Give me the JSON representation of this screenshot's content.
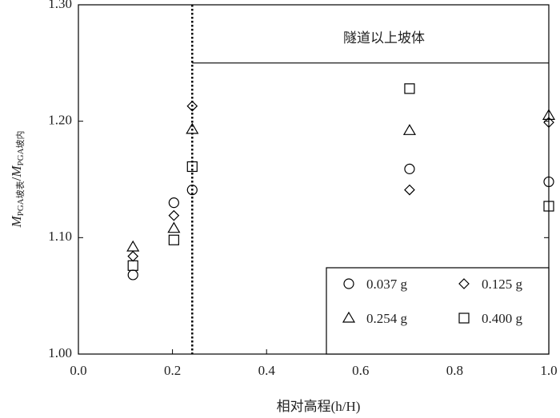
{
  "chart_data": {
    "type": "scatter",
    "xlabel": "相对高程(h/H)",
    "ylabel": {
      "main1": "M",
      "sub1": "PGA坡表",
      "sep": "/",
      "main2": "M",
      "sub2": "PGA坡内"
    },
    "annotation": "隧道以上坡体",
    "vline": 0.242,
    "hline": 1.25,
    "x": [
      0.116,
      0.203,
      0.242,
      0.704,
      1.0
    ],
    "series": [
      {
        "name": "0.037 g",
        "marker": "circle",
        "color": "#000000",
        "values": [
          1.068,
          1.13,
          1.141,
          1.159,
          1.148
        ]
      },
      {
        "name": "0.125 g",
        "marker": "diamond",
        "color": "#000000",
        "values": [
          1.084,
          1.119,
          1.213,
          1.141,
          1.199
        ]
      },
      {
        "name": "0.254 g",
        "marker": "triangle",
        "color": "#000000",
        "values": [
          1.092,
          1.108,
          1.193,
          1.192,
          1.205
        ]
      },
      {
        "name": "0.400 g",
        "marker": "square",
        "color": "#000000",
        "values": [
          1.076,
          1.098,
          1.161,
          1.228,
          1.127
        ]
      }
    ],
    "xlim": [
      0,
      1.0
    ],
    "xticks": [
      {
        "value": 0,
        "label": "0.0"
      },
      {
        "value": 0.2,
        "label": "0.2"
      },
      {
        "value": 0.4,
        "label": "0.4"
      },
      {
        "value": 0.6,
        "label": "0.6"
      },
      {
        "value": 0.8,
        "label": "0.8"
      },
      {
        "value": 1.0,
        "label": "1.0"
      }
    ],
    "ylim": [
      1.0,
      1.3
    ],
    "yticks": [
      {
        "value": 1.0,
        "label": "1.00"
      },
      {
        "value": 1.1,
        "label": "1.10"
      },
      {
        "value": 1.2,
        "label": "1.20"
      },
      {
        "value": 1.3,
        "label": "1.30"
      }
    ],
    "legend": "lower-right"
  }
}
